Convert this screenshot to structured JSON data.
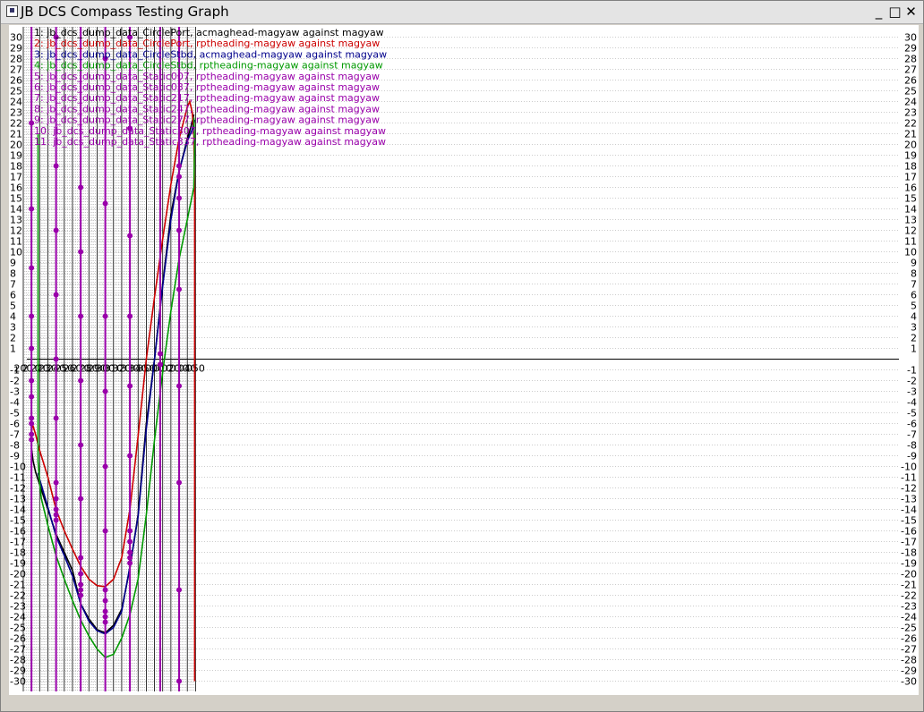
{
  "window": {
    "title": "JB DCS Compass Testing Graph",
    "minimize_glyph": "_",
    "maximize_glyph": "□",
    "close_glyph": "✕"
  },
  "chart_data": {
    "type": "line",
    "title": "",
    "xlabel": "",
    "ylabel": "",
    "x_tick_labels": [
      "200",
      "210",
      "220",
      "230",
      "240",
      "250",
      "260",
      "270",
      "280",
      "290",
      "300",
      "310",
      "320",
      "330",
      "340",
      "350",
      "000",
      "010",
      "020",
      "030",
      "040",
      "050"
    ],
    "x_range_degrees": [
      200,
      410
    ],
    "ylim": [
      -30,
      30
    ],
    "grid": true,
    "legend_position": "top-left",
    "series": [
      {
        "name": "1: jb_dcs_dump_data_CirclePort, acmaghead-magyaw against magyaw",
        "color": "#000000",
        "points": [
          [
            210,
            -8.3
          ],
          [
            212,
            -9.5
          ],
          [
            215,
            -10.5
          ],
          [
            220,
            -11.7
          ],
          [
            230,
            -14
          ],
          [
            240,
            -16.3
          ],
          [
            250,
            -18
          ],
          [
            260,
            -19.7
          ],
          [
            270,
            -22.8
          ],
          [
            280,
            -24.2
          ],
          [
            290,
            -25.2
          ],
          [
            300,
            -25.5
          ],
          [
            310,
            -24.8
          ],
          [
            320,
            -23.3
          ],
          [
            330,
            -19.5
          ],
          [
            340,
            -14.5
          ],
          [
            350,
            -6
          ],
          [
            360,
            0
          ],
          [
            370,
            7
          ],
          [
            380,
            13.5
          ],
          [
            390,
            17.5
          ],
          [
            400,
            20.5
          ],
          [
            405,
            21.8
          ],
          [
            408,
            22.8
          ]
        ]
      },
      {
        "name": "2: jb_dcs_dump_data_CirclePort, rptheading-magyaw against magyaw",
        "color": "#cc0000",
        "points": [
          [
            210,
            -7
          ],
          [
            211,
            -6
          ],
          [
            215,
            -7
          ],
          [
            220,
            -8.5
          ],
          [
            230,
            -11
          ],
          [
            240,
            -14
          ],
          [
            250,
            -16
          ],
          [
            260,
            -17.7
          ],
          [
            270,
            -19.3
          ],
          [
            280,
            -20.5
          ],
          [
            290,
            -21.1
          ],
          [
            300,
            -21.2
          ],
          [
            310,
            -20.5
          ],
          [
            320,
            -18.5
          ],
          [
            330,
            -14
          ],
          [
            340,
            -7.2
          ],
          [
            350,
            0
          ],
          [
            360,
            5.8
          ],
          [
            370,
            11.2
          ],
          [
            380,
            16.3
          ],
          [
            390,
            20.5
          ],
          [
            400,
            23.5
          ],
          [
            403,
            24
          ],
          [
            406,
            23
          ],
          [
            408,
            21
          ],
          [
            409,
            15
          ],
          [
            409,
            -30
          ]
        ]
      },
      {
        "name": "3: jb_dcs_dump_data_CircleStbd, acmaghead-magyaw against magyaw",
        "color": "#00008b",
        "points": [
          [
            218,
            -10.6
          ],
          [
            220,
            -11.2
          ],
          [
            230,
            -13.8
          ],
          [
            240,
            -16.5
          ],
          [
            250,
            -18.3
          ],
          [
            260,
            -20.2
          ],
          [
            270,
            -22.8
          ],
          [
            280,
            -24.4
          ],
          [
            290,
            -25.3
          ],
          [
            300,
            -25.6
          ],
          [
            310,
            -25
          ],
          [
            320,
            -23.5
          ],
          [
            330,
            -19.3
          ],
          [
            340,
            -14.7
          ],
          [
            350,
            -6.5
          ],
          [
            360,
            0
          ],
          [
            370,
            6.8
          ],
          [
            380,
            13
          ],
          [
            390,
            17.5
          ],
          [
            400,
            20.3
          ],
          [
            405,
            21.2
          ],
          [
            408,
            21.8
          ],
          [
            409,
            22.3
          ]
        ]
      },
      {
        "name": "4: jb_dcs_dump_data_CircleStbd, rptheading-magyaw against magyaw",
        "color": "#009900",
        "points": [
          [
            218,
            21
          ],
          [
            218,
            -9.5
          ],
          [
            220,
            -11.5
          ],
          [
            222,
            -13
          ],
          [
            230,
            -15.5
          ],
          [
            240,
            -18.3
          ],
          [
            250,
            -20.5
          ],
          [
            260,
            -22.5
          ],
          [
            270,
            -24.3
          ],
          [
            280,
            -25.8
          ],
          [
            290,
            -27
          ],
          [
            300,
            -27.8
          ],
          [
            310,
            -27.5
          ],
          [
            320,
            -26
          ],
          [
            330,
            -23.8
          ],
          [
            340,
            -20.5
          ],
          [
            350,
            -14.5
          ],
          [
            360,
            -7.5
          ],
          [
            370,
            -1.2
          ],
          [
            380,
            4.5
          ],
          [
            390,
            9.3
          ],
          [
            400,
            13
          ],
          [
            408,
            16
          ],
          [
            409,
            20
          ],
          [
            408,
            22.5
          ]
        ]
      },
      {
        "name": "5: jb_dcs_dump_data_Static007, rptheading-magyaw against magyaw",
        "color": "#9900aa",
        "x": 367,
        "points": [
          [
            367,
            -0.5
          ],
          [
            367,
            0.5
          ]
        ]
      },
      {
        "name": "6: jb_dcs_dump_data_Static037, rptheading-magyaw against magyaw",
        "color": "#9900aa",
        "x": 210,
        "points": [
          [
            210,
            -7.5
          ],
          [
            210,
            -7
          ],
          [
            210,
            -6
          ],
          [
            210,
            -5.5
          ],
          [
            210,
            -3.5
          ],
          [
            210,
            -2
          ],
          [
            210,
            1
          ],
          [
            210,
            4
          ],
          [
            210,
            8.5
          ],
          [
            210,
            14
          ],
          [
            210,
            22
          ]
        ]
      },
      {
        "name": "7: jb_dcs_dump_data_Static217, rptheading-magyaw against magyaw",
        "color": "#9900aa",
        "x": 240,
        "points": [
          [
            240,
            -15
          ],
          [
            240,
            -14.5
          ],
          [
            240,
            -14
          ],
          [
            240,
            -13
          ],
          [
            240,
            -11.5
          ],
          [
            240,
            -5.5
          ],
          [
            240,
            0
          ],
          [
            240,
            6
          ],
          [
            240,
            12
          ],
          [
            240,
            18
          ],
          [
            240,
            30
          ]
        ]
      },
      {
        "name": "8: jb_dcs_dump_data_Static247, rptheading-magyaw against magyaw",
        "color": "#9900aa",
        "x": 270,
        "points": [
          [
            270,
            -22
          ],
          [
            270,
            -21.5
          ],
          [
            270,
            -21
          ],
          [
            270,
            -20
          ],
          [
            270,
            -18.5
          ],
          [
            270,
            -13
          ],
          [
            270,
            -8
          ],
          [
            270,
            -2
          ],
          [
            270,
            4
          ],
          [
            270,
            10
          ],
          [
            270,
            16
          ]
        ]
      },
      {
        "name": "9: jb_dcs_dump_data_Static277, rptheading-magyaw against magyaw",
        "color": "#9900aa",
        "x": 300,
        "points": [
          [
            300,
            -24.5
          ],
          [
            300,
            -24
          ],
          [
            300,
            -23.5
          ],
          [
            300,
            -22.5
          ],
          [
            300,
            -21.5
          ],
          [
            300,
            -16
          ],
          [
            300,
            -10
          ],
          [
            300,
            -3
          ],
          [
            300,
            4
          ],
          [
            300,
            14.5
          ],
          [
            300,
            28
          ]
        ]
      },
      {
        "name": "10: jb_dcs_dump_data_Static307, rptheading-magyaw against magyaw",
        "color": "#9900aa",
        "x": 330,
        "points": [
          [
            330,
            -19
          ],
          [
            330,
            -18.5
          ],
          [
            330,
            -18
          ],
          [
            330,
            -17
          ],
          [
            330,
            -16
          ],
          [
            330,
            -9
          ],
          [
            330,
            -2.5
          ],
          [
            330,
            4
          ],
          [
            330,
            11.5
          ],
          [
            330,
            21.5
          ],
          [
            330,
            30
          ]
        ]
      },
      {
        "name": "11: jb_dcs_dump_data_Static337, rptheading-magyaw against magyaw",
        "color": "#9900aa",
        "x": 390,
        "points": [
          [
            390,
            -30
          ],
          [
            390,
            -21.5
          ],
          [
            390,
            -11.5
          ],
          [
            390,
            -2.5
          ],
          [
            390,
            6.5
          ],
          [
            390,
            12
          ],
          [
            390,
            15
          ],
          [
            390,
            17
          ],
          [
            390,
            18
          ]
        ]
      }
    ]
  }
}
